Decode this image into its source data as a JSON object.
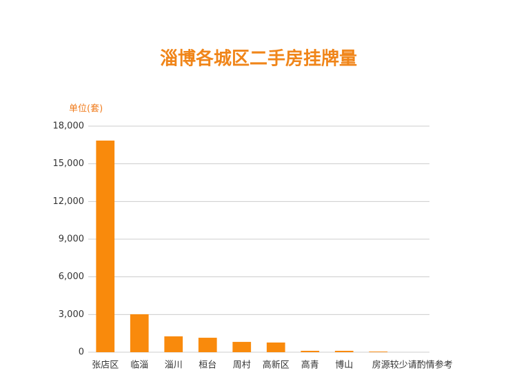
{
  "chart_data": {
    "type": "bar",
    "title": "淄博各城区二手房挂牌量",
    "y_label": "单位(套)",
    "categories": [
      "张店区",
      "临淄",
      "淄川",
      "桓台",
      "周村",
      "高新区",
      "高青",
      "博山",
      null,
      "房源较少请酌情参考"
    ],
    "values": [
      16850,
      3020,
      1260,
      1150,
      820,
      770,
      110,
      110,
      50,
      null
    ],
    "color": "#f98a0c",
    "ylim": [
      0,
      18000
    ],
    "yticks": [
      0,
      {
        "value": 3000,
        "label": "3,000"
      },
      {
        "value": 6000,
        "label": "6,000"
      },
      {
        "value": 9000,
        "label": "9,000"
      },
      {
        "value": 12000,
        "label": "12,000"
      },
      {
        "value": 15000,
        "label": "15,000"
      },
      {
        "value": 18000,
        "label": "18,000"
      }
    ],
    "grid": true
  }
}
